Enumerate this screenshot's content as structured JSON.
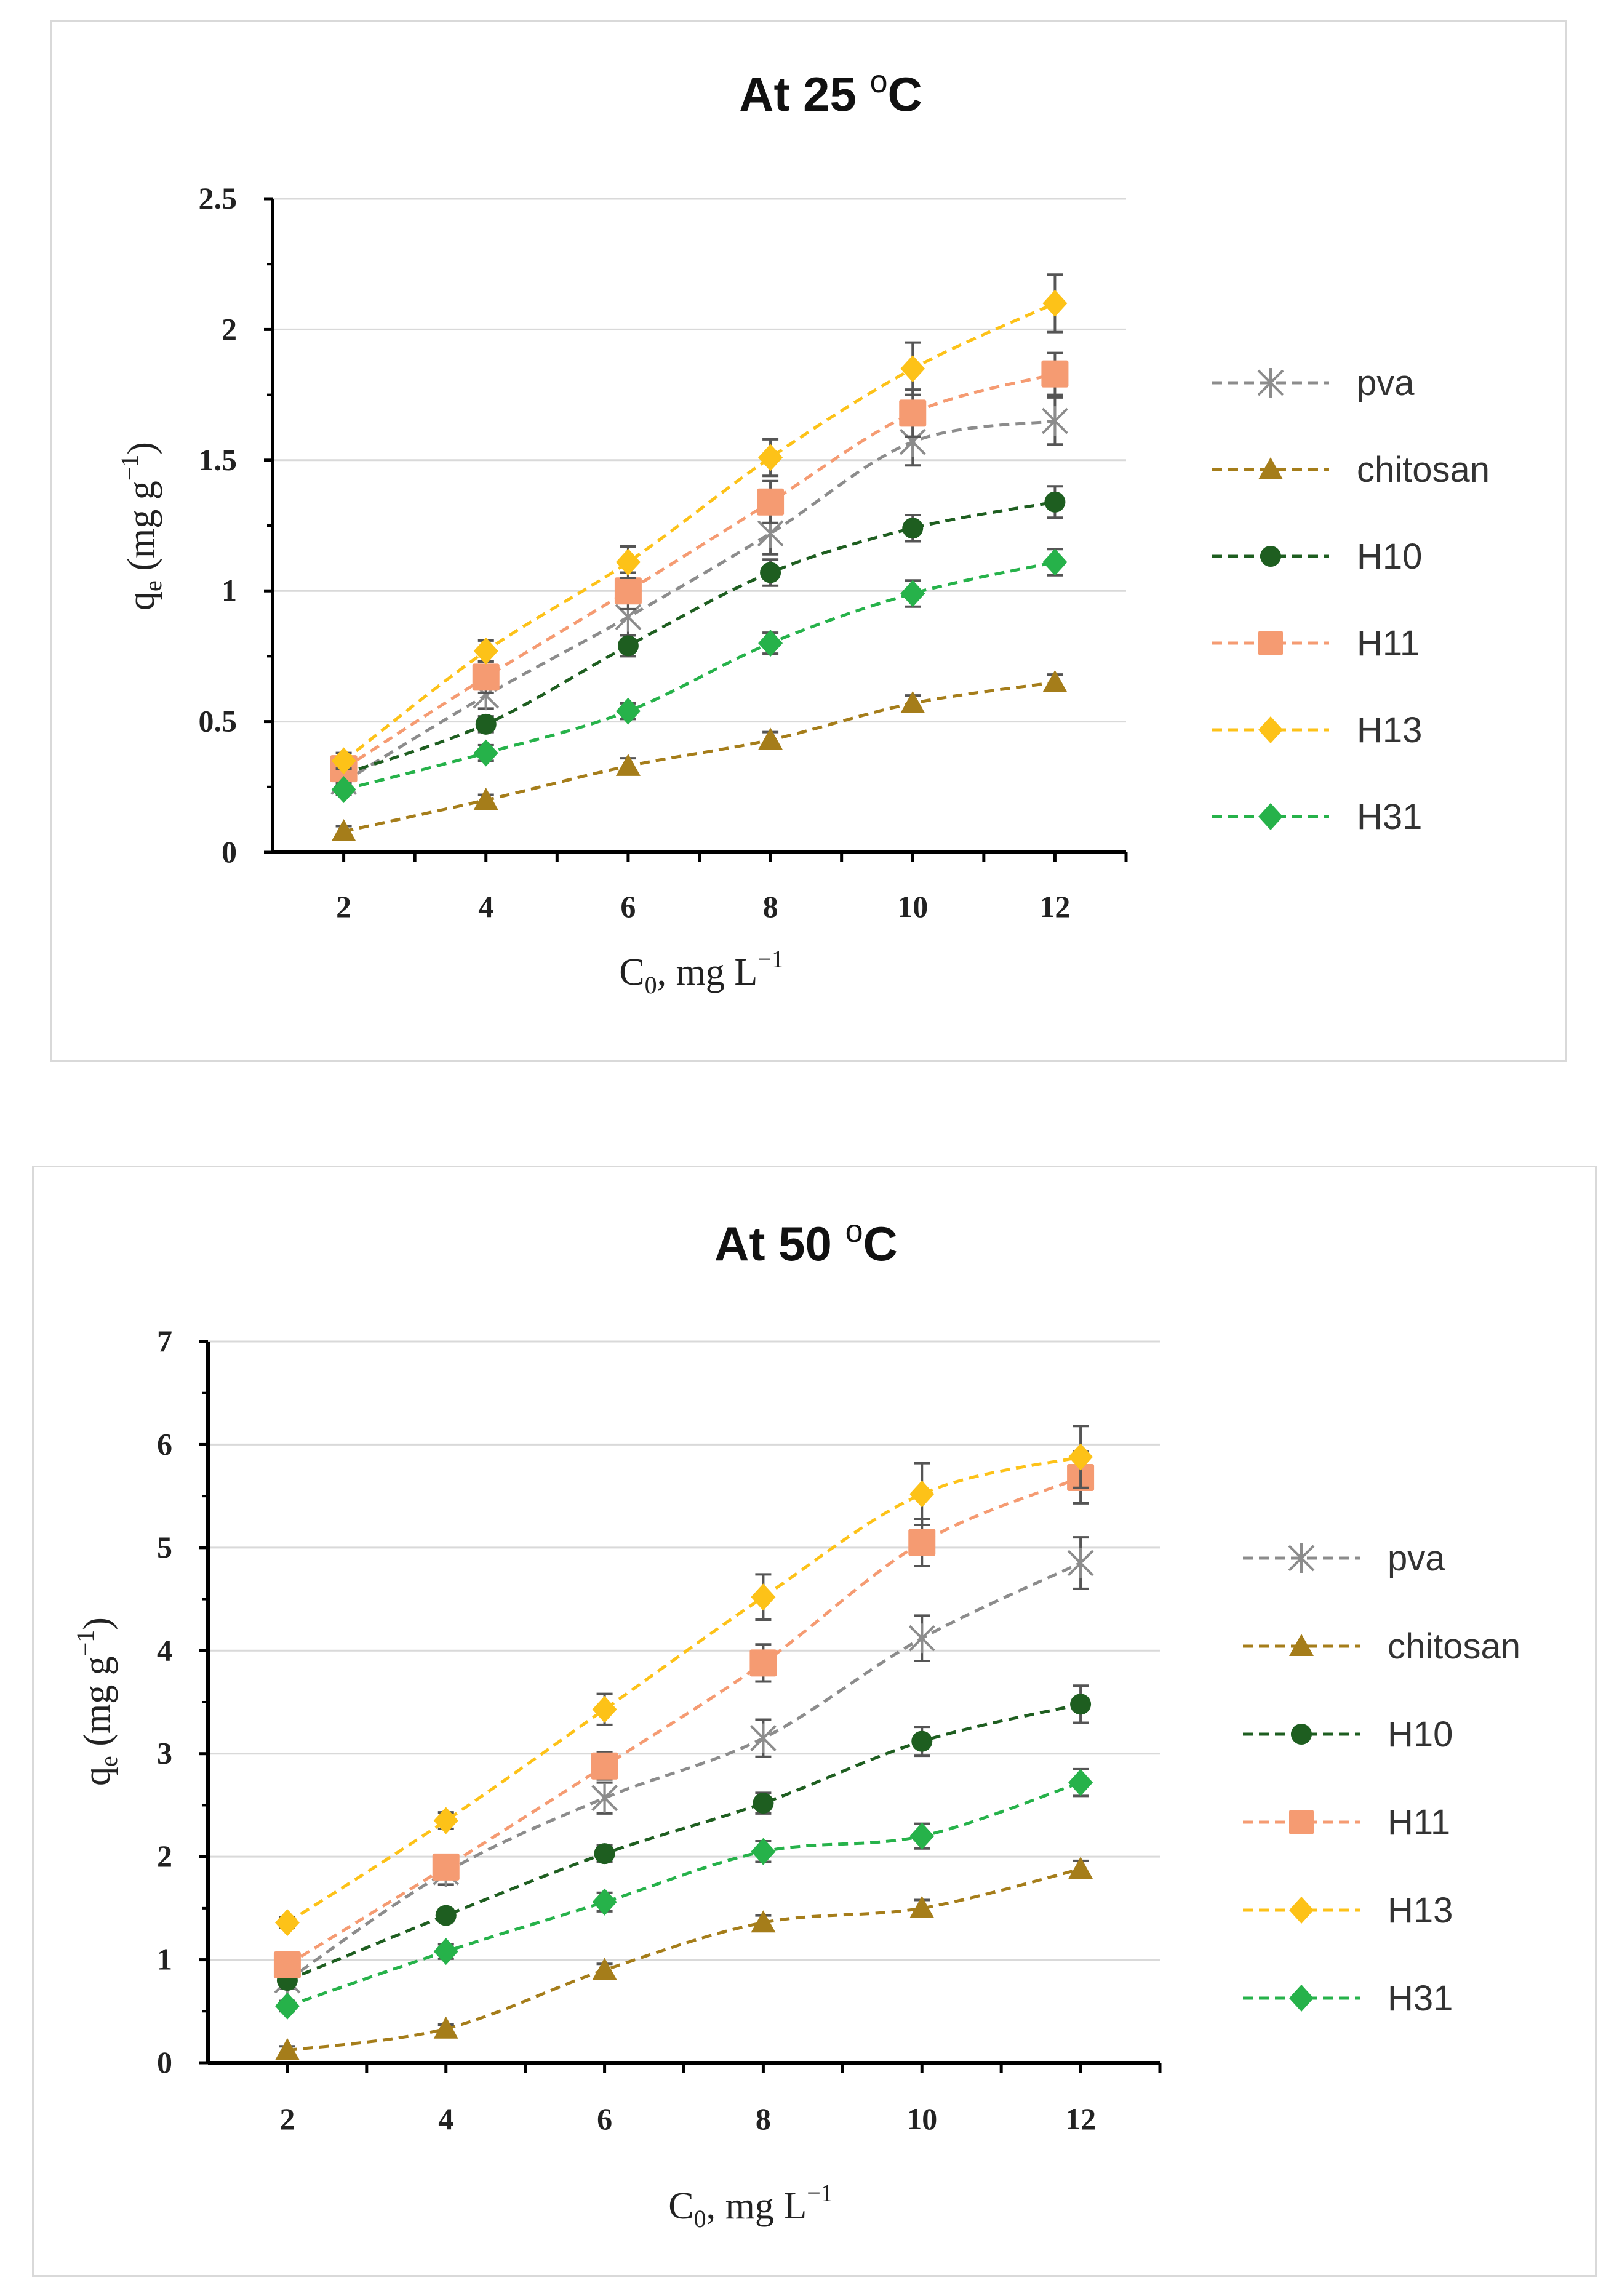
{
  "chart_data": [
    {
      "type": "line",
      "title": "At 25 °C",
      "title_main": "At 25 ",
      "title_sup": "o",
      "title_end": "C",
      "xlabel": "C0, mg L−1",
      "ylabel": "qe (mg g−1)",
      "x": [
        2,
        4,
        6,
        8,
        10,
        12
      ],
      "xticks": [
        "2",
        "4",
        "6",
        "8",
        "10",
        "12"
      ],
      "yticks": [
        "0",
        "0.5",
        "1",
        "1.5",
        "2",
        "2.5"
      ],
      "ylim": [
        0,
        2.5
      ],
      "grid": true,
      "legend_position": "right",
      "series": [
        {
          "name": "pva",
          "color": "#8c8c8c",
          "marker": "asterisk",
          "values": [
            0.27,
            0.6,
            0.9,
            1.22,
            1.57,
            1.65
          ],
          "errors": [
            0.03,
            0.05,
            0.07,
            0.08,
            0.09,
            0.09
          ]
        },
        {
          "name": "chitosan",
          "color": "#a57d1a",
          "marker": "triangle",
          "values": [
            0.08,
            0.2,
            0.33,
            0.43,
            0.57,
            0.65
          ],
          "errors": [
            0.02,
            0.02,
            0.03,
            0.03,
            0.03,
            0.03
          ]
        },
        {
          "name": "H10",
          "color": "#1e5e20",
          "marker": "circle",
          "values": [
            0.3,
            0.49,
            0.79,
            1.07,
            1.24,
            1.34
          ],
          "errors": [
            0.03,
            0.03,
            0.04,
            0.05,
            0.05,
            0.06
          ]
        },
        {
          "name": "H11",
          "color": "#f59b72",
          "marker": "square",
          "values": [
            0.32,
            0.67,
            1.0,
            1.34,
            1.68,
            1.83
          ],
          "errors": [
            0.04,
            0.06,
            0.07,
            0.08,
            0.09,
            0.08
          ]
        },
        {
          "name": "H13",
          "color": "#fdc218",
          "marker": "diamond",
          "values": [
            0.35,
            0.77,
            1.11,
            1.51,
            1.85,
            2.1
          ],
          "errors": [
            0.03,
            0.04,
            0.06,
            0.07,
            0.1,
            0.11
          ]
        },
        {
          "name": "H31",
          "color": "#26b24a",
          "marker": "diamond",
          "values": [
            0.24,
            0.38,
            0.54,
            0.8,
            0.99,
            1.11
          ],
          "errors": [
            0.02,
            0.03,
            0.03,
            0.04,
            0.05,
            0.05
          ]
        }
      ]
    },
    {
      "type": "line",
      "title": "At 50 °C",
      "title_main": "At 50 ",
      "title_sup": "o",
      "title_end": "C",
      "xlabel": "C0, mg L−1",
      "ylabel": "qe (mg g−1)",
      "x": [
        2,
        4,
        6,
        8,
        10,
        12
      ],
      "xticks": [
        "2",
        "4",
        "6",
        "8",
        "10",
        "12"
      ],
      "yticks": [
        "0",
        "1",
        "2",
        "3",
        "4",
        "5",
        "6",
        "7"
      ],
      "ylim": [
        0,
        7
      ],
      "grid": true,
      "legend_position": "right",
      "series": [
        {
          "name": "pva",
          "color": "#8c8c8c",
          "marker": "asterisk",
          "values": [
            0.8,
            1.85,
            2.57,
            3.15,
            4.12,
            4.85
          ],
          "errors": [
            0.08,
            0.12,
            0.15,
            0.18,
            0.22,
            0.25
          ]
        },
        {
          "name": "chitosan",
          "color": "#a57d1a",
          "marker": "triangle",
          "values": [
            0.12,
            0.33,
            0.9,
            1.36,
            1.5,
            1.88
          ],
          "errors": [
            0.04,
            0.04,
            0.06,
            0.07,
            0.08,
            0.08
          ]
        },
        {
          "name": "H10",
          "color": "#1e5e20",
          "marker": "circle",
          "values": [
            0.8,
            1.43,
            2.03,
            2.52,
            3.12,
            3.48
          ],
          "errors": [
            0.05,
            0.06,
            0.08,
            0.1,
            0.14,
            0.18
          ]
        },
        {
          "name": "H11",
          "color": "#f59b72",
          "marker": "square",
          "values": [
            0.95,
            1.9,
            2.88,
            3.88,
            5.05,
            5.68
          ],
          "errors": [
            0.06,
            0.1,
            0.13,
            0.18,
            0.23,
            0.25
          ]
        },
        {
          "name": "H13",
          "color": "#fdc218",
          "marker": "diamond",
          "values": [
            1.36,
            2.35,
            3.43,
            4.52,
            5.52,
            5.88
          ],
          "errors": [
            0.05,
            0.08,
            0.15,
            0.22,
            0.3,
            0.3
          ]
        },
        {
          "name": "H31",
          "color": "#26b24a",
          "marker": "diamond",
          "values": [
            0.55,
            1.08,
            1.56,
            2.05,
            2.2,
            2.72
          ],
          "errors": [
            0.05,
            0.07,
            0.09,
            0.1,
            0.12,
            0.13
          ]
        }
      ]
    }
  ]
}
